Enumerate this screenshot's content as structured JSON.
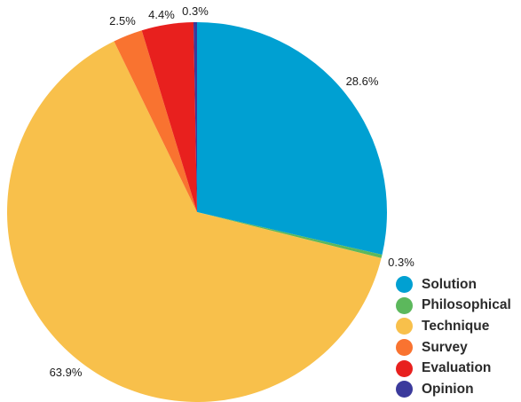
{
  "chart_data": {
    "type": "pie",
    "title": "",
    "start_angle_deg": 0,
    "direction": "clockwise",
    "slices": [
      {
        "label": "Solution",
        "value": 28.6,
        "value_label": "28.6%",
        "color": "#00a0d2"
      },
      {
        "label": "Philosophical",
        "value": 0.3,
        "value_label": "0.3%",
        "color": "#5cb85c"
      },
      {
        "label": "Technique",
        "value": 63.9,
        "value_label": "63.9%",
        "color": "#f8c04b"
      },
      {
        "label": "Survey",
        "value": 2.5,
        "value_label": "2.5%",
        "color": "#f97330"
      },
      {
        "label": "Evaluation",
        "value": 4.4,
        "value_label": "4.4%",
        "color": "#e8201e"
      },
      {
        "label": "Opinion",
        "value": 0.3,
        "value_label": "0.3%",
        "color": "#3b3a9c"
      }
    ],
    "legend": {
      "placement": "bottom-right",
      "entries": [
        "Solution",
        "Philosophical",
        "Technique",
        "Survey",
        "Evaluation",
        "Opinion"
      ]
    }
  }
}
